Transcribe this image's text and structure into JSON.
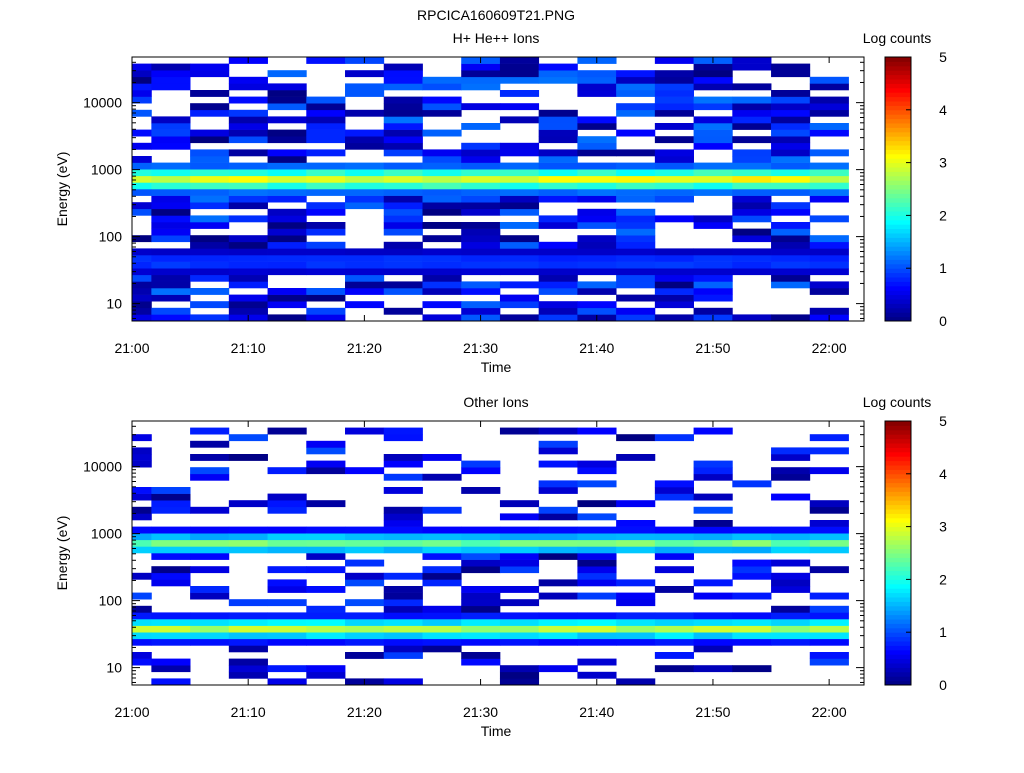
{
  "figure_title": "RPCICA160609T21.PNG",
  "colors": {
    "colormap": [
      "#00007f",
      "#0000ff",
      "#007fff",
      "#00ffff",
      "#7fff7f",
      "#ffff00",
      "#ff7f00",
      "#ff0000",
      "#7f0000"
    ]
  },
  "chart_data": [
    {
      "type": "heatmap",
      "title": "H+ He++ Ions",
      "xlabel": "Time",
      "ylabel": "Energy (eV)",
      "x_tick_labels": [
        "21:00",
        "21:10",
        "21:20",
        "21:30",
        "21:40",
        "21:50",
        "22:00"
      ],
      "x_ticks_minutes": [
        0,
        10,
        20,
        30,
        40,
        50,
        60
      ],
      "xlim_minutes": [
        0,
        63
      ],
      "y_scale": "log",
      "ylim": [
        5.5,
        48000
      ],
      "y_tick_labels": [
        "10",
        "100",
        "1000",
        "10000"
      ],
      "y_ticks": [
        10,
        100,
        1000,
        10000
      ],
      "colorbar": {
        "label": "Log counts",
        "range": [
          0,
          5
        ],
        "tick_labels": [
          "0",
          "1",
          "2",
          "3",
          "4",
          "5"
        ]
      },
      "time_bins": 19,
      "energy_bins": 40,
      "bands": [
        {
          "e_lo": 420,
          "e_hi": 1200,
          "peak_e": 720,
          "peak_val": 3.1
        },
        {
          "e_lo": 30,
          "e_hi": 62,
          "peak_e": 42,
          "peak_val": 1.1
        }
      ],
      "sparse": {
        "e_lo": 6,
        "e_hi": 45000,
        "density": 0.62,
        "val_max": 1.2
      }
    },
    {
      "type": "heatmap",
      "title": "Other Ions",
      "xlabel": "Time",
      "ylabel": "Energy (eV)",
      "x_tick_labels": [
        "21:00",
        "21:10",
        "21:20",
        "21:30",
        "21:40",
        "21:50",
        "22:00"
      ],
      "x_ticks_minutes": [
        0,
        10,
        20,
        30,
        40,
        50,
        60
      ],
      "xlim_minutes": [
        0,
        63
      ],
      "y_scale": "log",
      "ylim": [
        5.5,
        48000
      ],
      "y_tick_labels": [
        "10",
        "100",
        "1000",
        "10000"
      ],
      "y_ticks": [
        10,
        100,
        1000,
        10000
      ],
      "colorbar": {
        "label": "Log counts",
        "range": [
          0,
          5
        ],
        "tick_labels": [
          "0",
          "1",
          "2",
          "3",
          "4",
          "5"
        ]
      },
      "time_bins": 19,
      "energy_bins": 40,
      "bands": [
        {
          "e_lo": 500,
          "e_hi": 1150,
          "peak_e": 720,
          "peak_val": 2.5
        },
        {
          "e_lo": 24,
          "e_hi": 60,
          "peak_e": 38,
          "peak_val": 2.8
        }
      ],
      "sparse": {
        "e_lo": 6,
        "e_hi": 40000,
        "density": 0.33,
        "val_max": 1.0
      }
    }
  ]
}
